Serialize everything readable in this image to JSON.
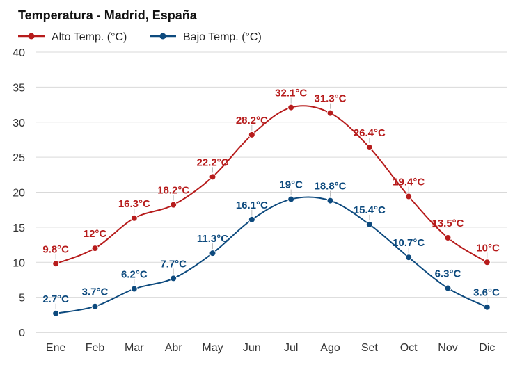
{
  "chart_data": {
    "type": "line",
    "title": "Temperatura - Madrid, España",
    "categories": [
      "Ene",
      "Feb",
      "Mar",
      "Abr",
      "May",
      "Jun",
      "Jul",
      "Ago",
      "Set",
      "Oct",
      "Nov",
      "Dic"
    ],
    "ylim": [
      0,
      40
    ],
    "yticks": [
      0,
      5,
      10,
      15,
      20,
      25,
      30,
      35,
      40
    ],
    "grid": true,
    "legend_position": "top-left",
    "series": [
      {
        "name": "Alto Temp. (°C)",
        "color": "#b71c1c",
        "values": [
          9.8,
          12,
          16.3,
          18.2,
          22.2,
          28.2,
          32.1,
          31.3,
          26.4,
          19.4,
          13.5,
          10
        ],
        "labels": [
          "9.8°C",
          "12°C",
          "16.3°C",
          "18.2°C",
          "22.2°C",
          "28.2°C",
          "32.1°C",
          "31.3°C",
          "26.4°C",
          "19.4°C",
          "13.5°C",
          "10°C"
        ]
      },
      {
        "name": "Bajo Temp. (°C)",
        "color": "#0d4a7e",
        "values": [
          2.7,
          3.7,
          6.2,
          7.7,
          11.3,
          16.1,
          19,
          18.8,
          15.4,
          10.7,
          6.3,
          3.6
        ],
        "labels": [
          "2.7°C",
          "3.7°C",
          "6.2°C",
          "7.7°C",
          "11.3°C",
          "16.1°C",
          "19°C",
          "18.8°C",
          "15.4°C",
          "10.7°C",
          "6.3°C",
          "3.6°C"
        ]
      }
    ]
  }
}
